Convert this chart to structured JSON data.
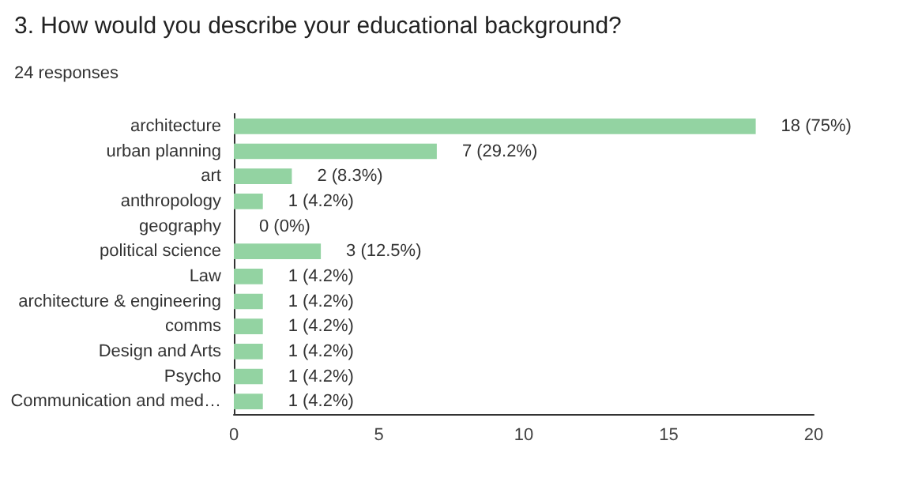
{
  "chart_data": {
    "type": "bar",
    "orientation": "horizontal",
    "title": "3. How would you describe your educational background?",
    "subtitle": "24 responses",
    "categories": [
      "architecture",
      "urban planning",
      "art",
      "anthropology",
      "geography",
      "political science",
      "Law",
      "architecture & engineering",
      "comms",
      "Design and Arts",
      "Psycho",
      "Communication and med…"
    ],
    "values": [
      18,
      7,
      2,
      1,
      0,
      3,
      1,
      1,
      1,
      1,
      1,
      1
    ],
    "value_labels": [
      "18 (75%)",
      "7 (29.2%)",
      "2 (8.3%)",
      "1 (4.2%)",
      "0 (0%)",
      "3 (12.5%)",
      "1 (4.2%)",
      "1 (4.2%)",
      "1 (4.2%)",
      "1 (4.2%)",
      "1 (4.2%)",
      "1 (4.2%)"
    ],
    "color": "#93d3a2",
    "xlim": [
      0,
      20
    ],
    "xticks": [
      0,
      5,
      10,
      15,
      20
    ],
    "grid": false
  }
}
